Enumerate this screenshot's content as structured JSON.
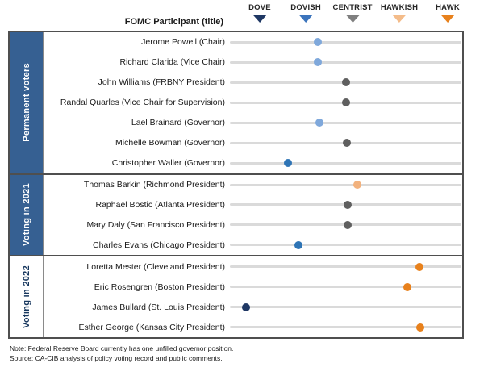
{
  "header": {
    "title": "FOMC Participant (title)"
  },
  "footer": {
    "note": "Note: Federal Reserve Board currently has one unfilled governor position.",
    "source": "Source: CA-CIB analysis of policy voting record and public comments."
  },
  "colors": {
    "band_blue": "#366092",
    "track_gray": "#dadada",
    "dove": "#1f3864",
    "dovish": "#3b74bc",
    "centrist": "#7f7f7f",
    "hawkish": "#f4bc8a",
    "hawk": "#e8811c",
    "dot_light_blue": "#7fa8db",
    "dot_blue": "#2e74b5",
    "dot_gray": "#5f5f5f",
    "dot_light_orange": "#f2b27e",
    "dot_orange": "#e8811c",
    "dot_navy": "#1f3864"
  },
  "chart_data": {
    "type": "scatter",
    "subtype": "dove-hawk dot plot",
    "title": "FOMC Participant (title)",
    "x_axis": {
      "scale_labels": [
        "DOVE",
        "DOVISH",
        "CENTRIST",
        "HAWKISH",
        "HAWK"
      ],
      "scale_values": [
        1,
        2,
        3,
        4,
        5
      ],
      "tick_positions_pct": [
        10.1,
        30.0,
        50.2,
        70.4,
        91.3
      ],
      "grid": false
    },
    "legend": [
      {
        "label": "DOVE",
        "color_key": "dove",
        "pos_pct": 10.1
      },
      {
        "label": "DOVISH",
        "color_key": "dovish",
        "pos_pct": 30.0
      },
      {
        "label": "CENTRIST",
        "color_key": "centrist",
        "pos_pct": 50.2
      },
      {
        "label": "HAWKISH",
        "color_key": "hawkish",
        "pos_pct": 70.4
      },
      {
        "label": "HAWK",
        "color_key": "hawk",
        "pos_pct": 91.3
      }
    ],
    "groups": [
      {
        "label": "Permanent voters",
        "band_style": "blue",
        "participants": [
          {
            "name": "Jerome Powell (Chair)",
            "score": 2.4,
            "stance": "dovish-leaning centrist",
            "color_key": "dot_light_blue",
            "pos_pct": 38.0
          },
          {
            "name": "Richard Clarida (Vice Chair)",
            "score": 2.4,
            "stance": "dovish-leaning centrist",
            "color_key": "dot_light_blue",
            "pos_pct": 38.0
          },
          {
            "name": "John Williams (FRBNY President)",
            "score": 3.0,
            "stance": "centrist",
            "color_key": "dot_gray",
            "pos_pct": 50.2
          },
          {
            "name": "Randal Quarles (Vice Chair for Supervision)",
            "score": 3.0,
            "stance": "centrist",
            "color_key": "dot_gray",
            "pos_pct": 50.2
          },
          {
            "name": "Lael Brainard (Governor)",
            "score": 2.4,
            "stance": "dovish-leaning centrist",
            "color_key": "dot_light_blue",
            "pos_pct": 38.7
          },
          {
            "name": "Michelle Bowman (Governor)",
            "score": 3.0,
            "stance": "centrist",
            "color_key": "dot_gray",
            "pos_pct": 50.5
          },
          {
            "name": "Christopher Waller (Governor)",
            "score": 1.7,
            "stance": "dovish",
            "color_key": "dot_blue",
            "pos_pct": 25.1
          }
        ]
      },
      {
        "label": "Voting in 2021",
        "band_style": "blue",
        "participants": [
          {
            "name": "Thomas Barkin (Richmond President)",
            "score": 3.2,
            "stance": "hawkish-leaning centrist",
            "color_key": "dot_light_orange",
            "pos_pct": 55.1
          },
          {
            "name": "Raphael Bostic (Atlanta President)",
            "score": 3.0,
            "stance": "centrist",
            "color_key": "dot_gray",
            "pos_pct": 50.9
          },
          {
            "name": "Mary Daly (San Francisco President)",
            "score": 3.0,
            "stance": "centrist",
            "color_key": "dot_gray",
            "pos_pct": 50.9
          },
          {
            "name": "Charles Evans (Chicago President)",
            "score": 2.0,
            "stance": "dovish",
            "color_key": "dot_blue",
            "pos_pct": 29.6
          }
        ]
      },
      {
        "label": "Voting in 2022",
        "band_style": "white",
        "participants": [
          {
            "name": "Loretta Mester (Cleveland President)",
            "score": 4.5,
            "stance": "hawk",
            "color_key": "dot_orange",
            "pos_pct": 81.9
          },
          {
            "name": "Eric Rosengren (Boston President)",
            "score": 4.3,
            "stance": "hawk",
            "color_key": "dot_orange",
            "pos_pct": 76.7
          },
          {
            "name": "James Bullard (St. Louis President)",
            "score": 1.0,
            "stance": "dove",
            "color_key": "dot_navy",
            "pos_pct": 7.0
          },
          {
            "name": "Esther George (Kansas City President)",
            "score": 4.5,
            "stance": "hawk",
            "color_key": "dot_orange",
            "pos_pct": 82.2
          }
        ]
      }
    ]
  }
}
